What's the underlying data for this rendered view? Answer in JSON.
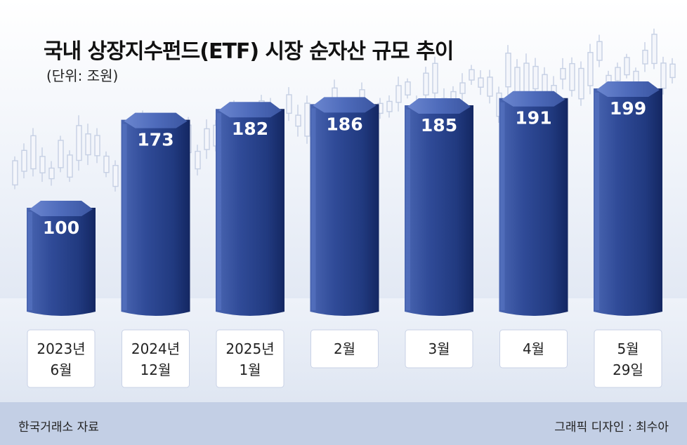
{
  "title": "국내 상장지수펀드(ETF) 시장 순자산 규모 추이",
  "unit": "(단위: 조원)",
  "source": "한국거래소 자료",
  "credit": "그래픽 디자인 : 최수아",
  "colors": {
    "bar_light": "#4560ac",
    "bar_mid": "#2b4490",
    "bar_dark": "#152a66",
    "bar_top": "#5c79c8",
    "label_box_border": "#c9d2e6",
    "background_band": "#dde4f1",
    "candle": "#c6d0e4"
  },
  "chart_data": {
    "type": "bar",
    "title": "국내 상장지수펀드(ETF) 시장 순자산 규모 추이",
    "ylabel": "(단위: 조원)",
    "categories": [
      [
        "2023년",
        "6월"
      ],
      [
        "2024년",
        "12월"
      ],
      [
        "2025년",
        "1월"
      ],
      [
        "2월"
      ],
      [
        "3월"
      ],
      [
        "4월"
      ],
      [
        "5월",
        "29일"
      ]
    ],
    "values": [
      100,
      173,
      182,
      186,
      185,
      191,
      199
    ],
    "ylim": [
      0,
      199
    ],
    "grid": false,
    "legend": "none"
  }
}
